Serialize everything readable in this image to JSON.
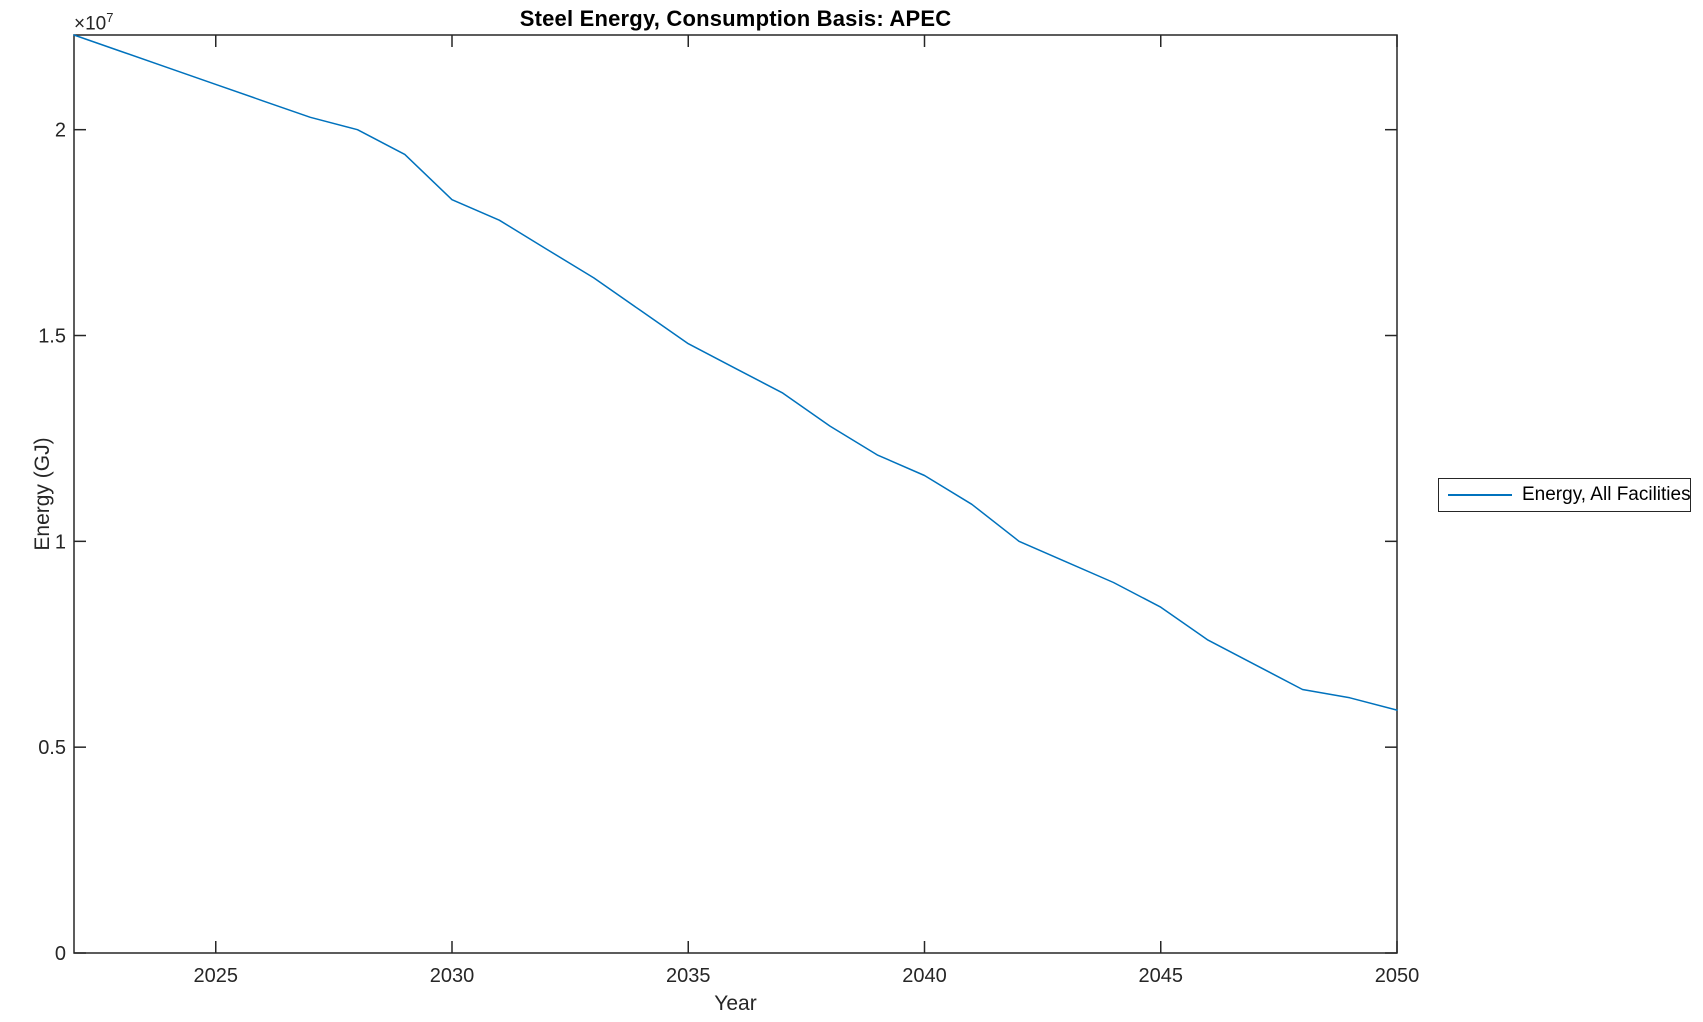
{
  "figure": {
    "title": "Steel Energy, Consumption Basis: APEC",
    "x_axis_label": "Year",
    "y_axis_label": "Energy (GJ)",
    "y_exponent": {
      "prefix": "×10",
      "power": "7"
    }
  },
  "legend": {
    "position": "right-outside",
    "items": [
      {
        "label": "Energy, All Facilities",
        "line_color": "#0072BD"
      }
    ]
  },
  "colors": {
    "line": "#0072BD",
    "axes": "#262626",
    "title": "#000000",
    "background": "#ffffff"
  },
  "chart_data": {
    "type": "line",
    "title": "Steel Energy, Consumption Basis: APEC",
    "xlabel": "Year",
    "ylabel": "Energy (GJ)",
    "grid": false,
    "box": true,
    "legend_position": "right-outside",
    "x_range": [
      2022,
      2050
    ],
    "y_range_gj": [
      0,
      22300000
    ],
    "y_scale_exponent": 7,
    "x_ticks": [
      2025,
      2030,
      2035,
      2040,
      2045,
      2050
    ],
    "y_ticks_gj": [
      0,
      5000000,
      10000000,
      15000000,
      20000000
    ],
    "y_tick_labels": [
      "0",
      "0.5",
      "1",
      "1.5",
      "2"
    ],
    "series": [
      {
        "name": "Energy, All Facilities",
        "color": "#0072BD",
        "x": [
          2022,
          2023,
          2024,
          2025,
          2026,
          2027,
          2028,
          2029,
          2030,
          2031,
          2032,
          2033,
          2034,
          2035,
          2036,
          2037,
          2038,
          2039,
          2040,
          2041,
          2042,
          2043,
          2044,
          2045,
          2046,
          2047,
          2048,
          2049,
          2050
        ],
        "y_gj": [
          22300000,
          21900000,
          21500000,
          21100000,
          20700000,
          20300000,
          20000000,
          19400000,
          18300000,
          17800000,
          17100000,
          16400000,
          15600000,
          14800000,
          14200000,
          13600000,
          12800000,
          12100000,
          11600000,
          10900000,
          10000000,
          9500000,
          9000000,
          8400000,
          7600000,
          7000000,
          6400000,
          6200000,
          5900000
        ]
      }
    ]
  }
}
